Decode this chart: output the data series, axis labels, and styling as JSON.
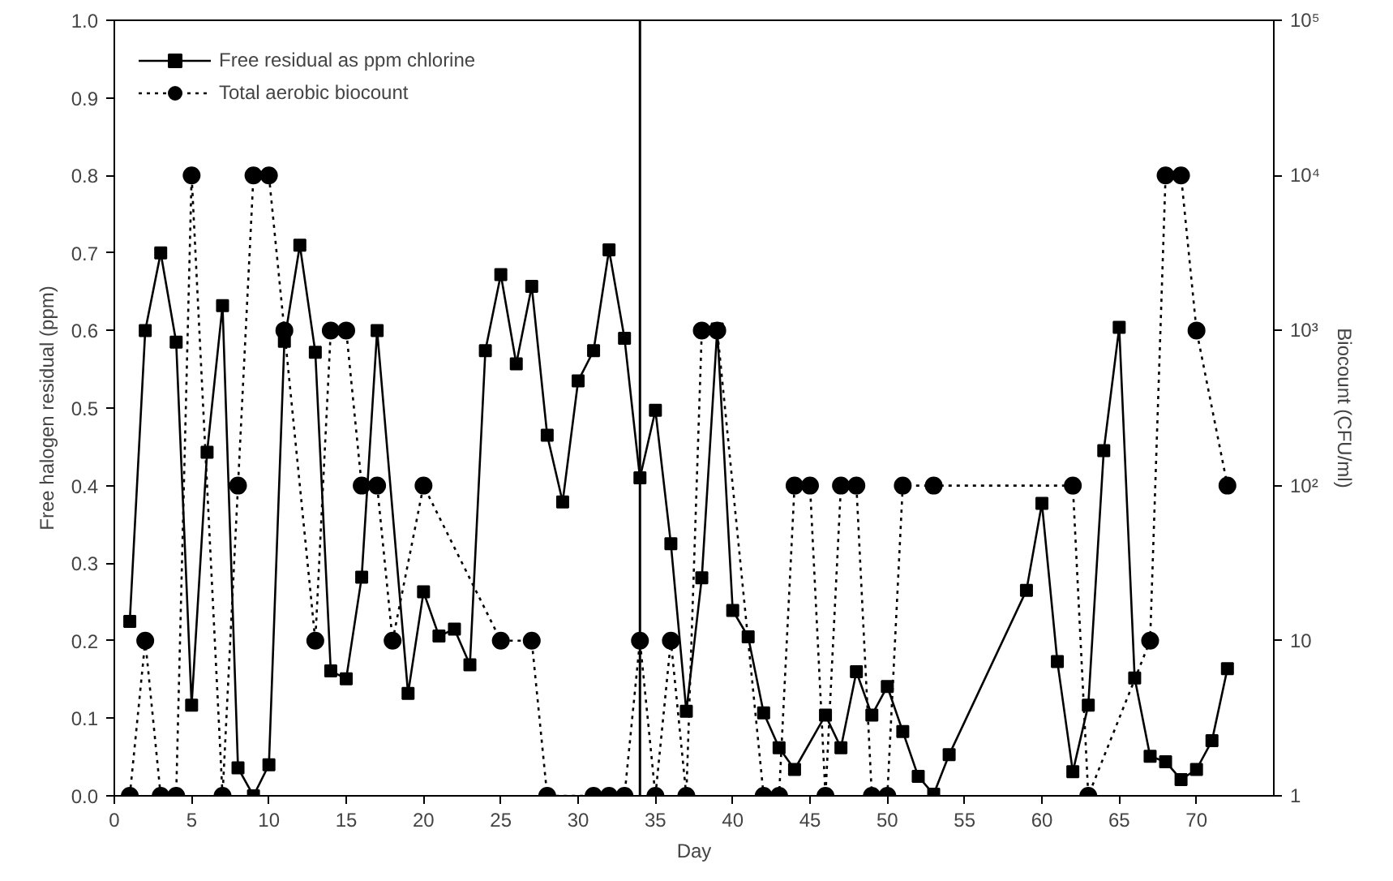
{
  "chart_data": {
    "type": "line",
    "xlabel": "Day",
    "ylabel": "Free halogen residual (ppm)",
    "y2label": "Biocount (CFU/ml)",
    "xlim": [
      0,
      75
    ],
    "xticks": [
      0,
      5,
      10,
      15,
      20,
      25,
      30,
      35,
      40,
      45,
      50,
      55,
      60,
      65,
      70
    ],
    "ylim": [
      0,
      1
    ],
    "yticks": [
      {
        "value": 0,
        "label": "0.0"
      },
      {
        "value": 0.1,
        "label": "0.1"
      },
      {
        "value": 0.2,
        "label": "0.2"
      },
      {
        "value": 0.3,
        "label": "0.3"
      },
      {
        "value": 0.4,
        "label": "0.4"
      },
      {
        "value": 0.5,
        "label": "0.5"
      },
      {
        "value": 0.6,
        "label": "0.6"
      },
      {
        "value": 0.7,
        "label": "0.7"
      },
      {
        "value": 0.8,
        "label": "0.8"
      },
      {
        "value": 0.9,
        "label": "0.9"
      },
      {
        "value": 1,
        "label": "1.0"
      }
    ],
    "y2lim": [
      1,
      100000
    ],
    "y2ticks": [
      1,
      10,
      {
        "value": 100,
        "label": "10²"
      },
      {
        "value": 1000,
        "label": "10³"
      },
      {
        "value": 10000,
        "label": "10⁴"
      },
      {
        "value": 100000,
        "label": "10⁵"
      }
    ],
    "log": "y2",
    "grid": false,
    "legend": "top left",
    "ref_lines": [
      {
        "axis": "x",
        "value": 34,
        "label": null
      }
    ],
    "series": [
      {
        "name": "Free residual as ppm chlorine",
        "color": "#000000",
        "marker": "square",
        "line_style": "solid",
        "x": [
          1,
          2,
          3,
          4,
          5,
          6,
          7,
          8,
          9,
          10,
          11,
          12,
          13,
          14,
          15,
          16,
          17,
          19,
          20,
          21,
          22,
          23,
          24,
          25,
          26,
          27,
          28,
          29,
          30,
          31,
          32,
          33,
          34,
          35,
          36,
          37,
          38,
          39,
          40,
          41,
          42,
          43,
          44,
          46,
          47,
          48,
          49,
          50,
          51,
          52,
          53,
          54,
          59,
          60,
          61,
          62,
          63,
          64,
          65,
          66,
          67,
          68,
          69,
          70,
          71,
          72
        ],
        "values": [
          0.225,
          0.6,
          0.7,
          0.585,
          0.117,
          0.443,
          0.632,
          0.036,
          0.0,
          0.04,
          0.586,
          0.71,
          0.572,
          0.161,
          0.151,
          0.282,
          0.6,
          0.132,
          0.263,
          0.206,
          0.215,
          0.169,
          0.574,
          0.672,
          0.557,
          0.657,
          0.465,
          0.379,
          0.535,
          0.574,
          0.704,
          0.59,
          0.41,
          0.497,
          0.325,
          0.109,
          0.281,
          0.602,
          0.239,
          0.205,
          0.107,
          0.062,
          0.034,
          0.104,
          0.062,
          0.16,
          0.104,
          0.141,
          0.083,
          0.025,
          0.002,
          0.053,
          0.265,
          0.377,
          0.173,
          0.031,
          0.117,
          0.445,
          0.604,
          0.152,
          0.051,
          0.044,
          0.021,
          0.034,
          0.071,
          0.164
        ]
      },
      {
        "name": "Total aerobic biocount",
        "color": "#000000",
        "marker": "circle",
        "line_style": "dotted",
        "axis": "y2",
        "x": [
          1,
          2,
          3,
          4,
          5,
          7,
          8,
          9,
          10,
          11,
          13,
          14,
          15,
          16,
          17,
          18,
          20,
          25,
          27,
          28,
          31,
          32,
          33,
          34,
          35,
          36,
          37,
          38,
          39,
          42,
          43,
          44,
          45,
          46,
          47,
          48,
          49,
          50,
          51,
          53,
          62,
          63,
          67,
          68,
          69,
          70,
          72
        ],
        "values": [
          1,
          10,
          1,
          1,
          10000,
          1,
          100,
          10000,
          10000,
          1000,
          10,
          1000,
          1000,
          100,
          100,
          10,
          100,
          10,
          10,
          1,
          1,
          1,
          1,
          10,
          1,
          10,
          1,
          1000,
          1000,
          1,
          1,
          100,
          100,
          1,
          100,
          100,
          1,
          1,
          100,
          100,
          100,
          1,
          10,
          10000,
          10000,
          1000,
          100
        ]
      }
    ]
  }
}
